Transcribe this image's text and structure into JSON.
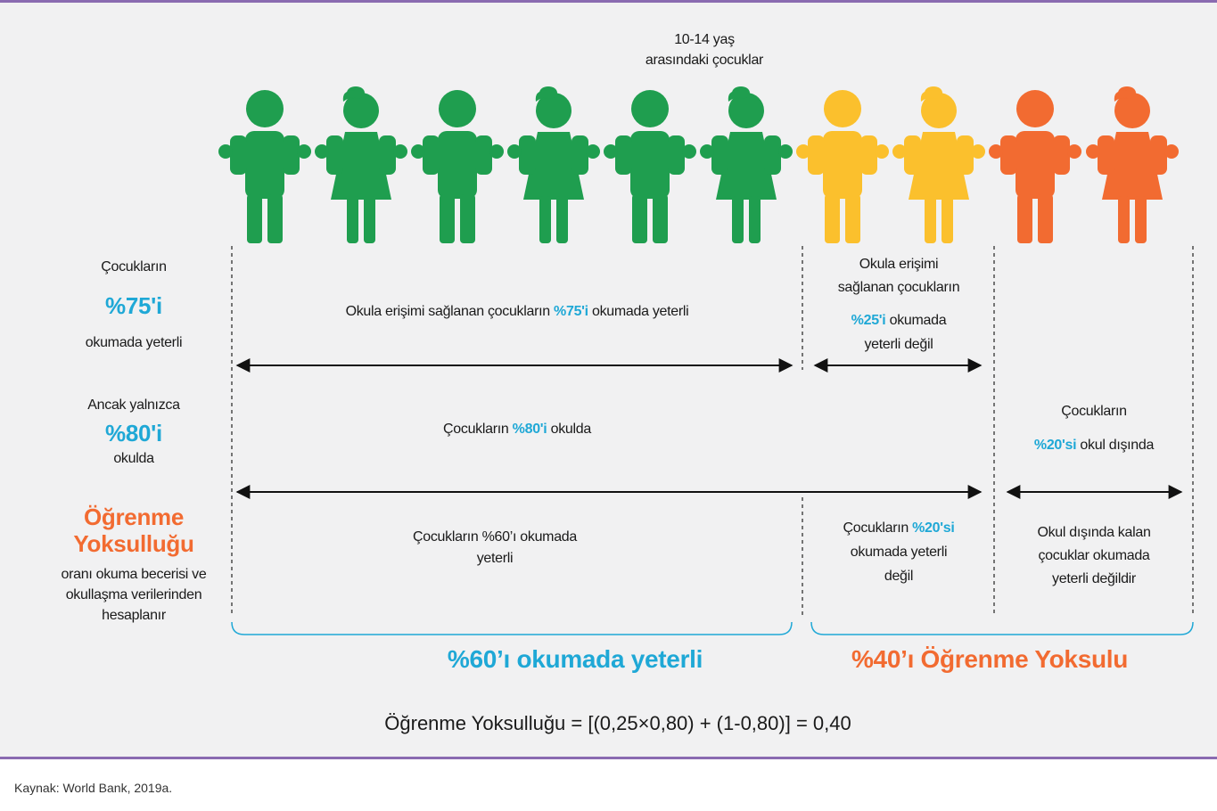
{
  "header": {
    "group_label": [
      "10-14 yaş",
      "arasındaki çocuklar"
    ]
  },
  "left": {
    "reading": {
      "line1": "Çocukların",
      "highlight": "%75'i",
      "line2": "okumada yeterli"
    },
    "school": {
      "line1": "Ancak yalnızca",
      "highlight": "%80'i",
      "line2": "okulda"
    },
    "poverty": {
      "title": [
        "Öğrenme",
        "Yoksulluğu"
      ],
      "lines": [
        "oranı okuma becerisi ve",
        "okullaşma verilerinden",
        "hesaplanır"
      ]
    }
  },
  "row1": {
    "main": {
      "before": "Okula erişimi sağlanan çocukların",
      "highlight": "%75'i",
      "after": "okumada yeterli"
    },
    "side": {
      "lines": [
        "Okula erişimi",
        "sağlanan çocukların"
      ],
      "highlight": "%25'i",
      "after": "okumada",
      "last": "yeterli değil"
    }
  },
  "row2": {
    "main": {
      "before": "Çocukların",
      "highlight": "%80'i",
      "after": "okulda"
    },
    "side": {
      "line1": "Çocukların",
      "highlight": "%20'si",
      "after": "okul dışında"
    }
  },
  "row3": {
    "left": [
      "Çocukların %60’ı okumada",
      "yeterli"
    ],
    "middle": {
      "before": "Çocukların",
      "highlight": "%20'si",
      "lines": [
        "okumada yeterli",
        "değil"
      ]
    },
    "right": [
      "Okul dışında kalan",
      "çocuklar okumada",
      "yeterli değildir"
    ]
  },
  "summary": {
    "adequate": "%60’ı okumada yeterli",
    "poor": "%40’ı Öğrenme Yoksulu"
  },
  "formula": "Öğrenme Yoksulluğu = [(0,25×0,80) + (1-0,80)] = 0,40",
  "source": "Kaynak: World Bank, 2019a."
}
